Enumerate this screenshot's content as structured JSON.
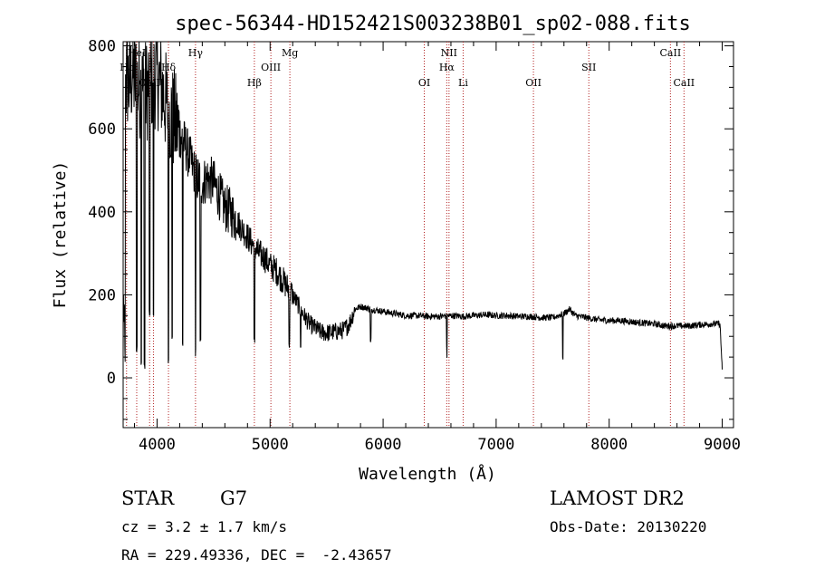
{
  "chart_data": {
    "type": "line",
    "title": "spec-56344-HD152421S003238B01_sp02-088.fits",
    "xlabel": "Wavelength (Å)",
    "ylabel": "Flux (relative)",
    "xlim": [
      3700,
      9100
    ],
    "ylim": [
      -120,
      810
    ],
    "x_ticks": [
      4000,
      5000,
      6000,
      7000,
      8000,
      9000
    ],
    "y_ticks": [
      0,
      200,
      400,
      600,
      800
    ],
    "grid": false,
    "line_color": "#000000",
    "marker_color": "#b22222",
    "spectrum_anchors": [
      [
        3700,
        620
      ],
      [
        3720,
        710
      ],
      [
        3740,
        720
      ],
      [
        3760,
        700
      ],
      [
        3780,
        740
      ],
      [
        3800,
        720
      ],
      [
        3850,
        700
      ],
      [
        3900,
        690
      ],
      [
        3950,
        720
      ],
      [
        4000,
        730
      ],
      [
        4050,
        690
      ],
      [
        4100,
        640
      ],
      [
        4150,
        620
      ],
      [
        4200,
        590
      ],
      [
        4250,
        560
      ],
      [
        4300,
        520
      ],
      [
        4350,
        480
      ],
      [
        4400,
        470
      ],
      [
        4450,
        480
      ],
      [
        4500,
        470
      ],
      [
        4550,
        440
      ],
      [
        4600,
        410
      ],
      [
        4650,
        400
      ],
      [
        4700,
        380
      ],
      [
        4750,
        360
      ],
      [
        4800,
        340
      ],
      [
        4850,
        320
      ],
      [
        4900,
        300
      ],
      [
        4950,
        290
      ],
      [
        5000,
        270
      ],
      [
        5050,
        260
      ],
      [
        5100,
        240
      ],
      [
        5150,
        220
      ],
      [
        5200,
        200
      ],
      [
        5250,
        175
      ],
      [
        5300,
        150
      ],
      [
        5350,
        130
      ],
      [
        5400,
        120
      ],
      [
        5450,
        110
      ],
      [
        5500,
        108
      ],
      [
        5550,
        110
      ],
      [
        5600,
        112
      ],
      [
        5650,
        115
      ],
      [
        5700,
        130
      ],
      [
        5750,
        165
      ],
      [
        5800,
        172
      ],
      [
        5900,
        165
      ],
      [
        6000,
        160
      ],
      [
        6100,
        155
      ],
      [
        6200,
        150
      ],
      [
        6300,
        150
      ],
      [
        6400,
        148
      ],
      [
        6500,
        148
      ],
      [
        6600,
        150
      ],
      [
        6700,
        148
      ],
      [
        6800,
        150
      ],
      [
        6900,
        152
      ],
      [
        7000,
        150
      ],
      [
        7100,
        150
      ],
      [
        7200,
        148
      ],
      [
        7300,
        148
      ],
      [
        7400,
        145
      ],
      [
        7500,
        145
      ],
      [
        7600,
        155
      ],
      [
        7650,
        165
      ],
      [
        7700,
        150
      ],
      [
        7800,
        145
      ],
      [
        7900,
        140
      ],
      [
        8000,
        138
      ],
      [
        8100,
        138
      ],
      [
        8200,
        135
      ],
      [
        8300,
        132
      ],
      [
        8400,
        130
      ],
      [
        8500,
        125
      ],
      [
        8600,
        125
      ],
      [
        8700,
        125
      ],
      [
        8800,
        128
      ],
      [
        8900,
        130
      ],
      [
        8980,
        130
      ],
      [
        9000,
        25
      ]
    ],
    "absorption_features": [
      [
        3820,
        60
      ],
      [
        3860,
        20
      ],
      [
        3889,
        10
      ],
      [
        3934,
        130
      ],
      [
        3968,
        140
      ],
      [
        4101,
        30
      ],
      [
        4134,
        80
      ],
      [
        4226,
        60
      ],
      [
        4340,
        40
      ],
      [
        4384,
        60
      ],
      [
        4861,
        70
      ],
      [
        5170,
        60
      ],
      [
        5270,
        60
      ],
      [
        5890,
        60
      ],
      [
        6563,
        40
      ],
      [
        7590,
        30
      ]
    ],
    "lines": [
      {
        "label": "Hε",
        "x": 3730,
        "row": 1
      },
      {
        "label": "HeI",
        "x": 3820,
        "row": 0
      },
      {
        "label": "Hδ",
        "x": 4101,
        "row": 1
      },
      {
        "label": "CaII",
        "x": 3934,
        "row": 2
      },
      {
        "label": "CaII",
        "x": 3968,
        "row": 2
      },
      {
        "label": "Hγ",
        "x": 4340,
        "row": 0
      },
      {
        "label": "Hβ",
        "x": 4861,
        "row": 2
      },
      {
        "label": "OIII",
        "x": 5007,
        "row": 1
      },
      {
        "label": "Mg",
        "x": 5175,
        "row": 0
      },
      {
        "label": "OI",
        "x": 6364,
        "row": 2
      },
      {
        "label": "NII",
        "x": 6583,
        "row": 0
      },
      {
        "label": "Hα",
        "x": 6563,
        "row": 1
      },
      {
        "label": "Li",
        "x": 6708,
        "row": 2
      },
      {
        "label": "OII",
        "x": 7330,
        "row": 2
      },
      {
        "label": "SII",
        "x": 7820,
        "row": 1
      },
      {
        "label": "CaII",
        "x": 8542,
        "row": 0
      },
      {
        "label": "CaII",
        "x": 8662,
        "row": 2
      }
    ]
  },
  "info": {
    "class_label": "STAR",
    "subclass": "G7",
    "survey": "LAMOST DR2",
    "cz": "cz = 3.2 ± 1.7 km/s",
    "obs_date": "Obs-Date: 20130220",
    "coords": "RA = 229.49336, DEC =  -2.43657"
  }
}
